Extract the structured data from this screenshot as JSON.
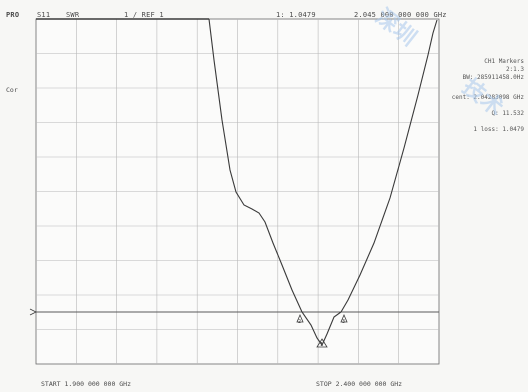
{
  "header": {
    "mode": "PRO",
    "channel": "S11",
    "format": "SWR",
    "scale": "1   / REF  1",
    "marker_readout": "1: 1.0479",
    "marker_freq": "2.045 000 000 000 GHz"
  },
  "left_labels": {
    "top": "",
    "marker": "Cor",
    "mid": ""
  },
  "marker_panel": {
    "title": "CH1 Markers",
    "line1": "2:1.3",
    "line2": "BW: 285911458.0Hz",
    "line3": "cent: 2.04283098 GHz",
    "line4": "Q: 11.532",
    "line5": "1 loss: 1.0479"
  },
  "footer": {
    "start": "START  1.900 000 000 GHz",
    "stop": "STOP  2.400 000 000 GHz"
  },
  "watermark": {
    "text1": "深圳",
    "text2": "技术"
  },
  "colors": {
    "trace": "#3a3a3a",
    "grid": "#b8b8b8",
    "frame": "#6a6a6a",
    "watermark": "#a9c8ec"
  },
  "chart_data": {
    "type": "line",
    "xlabel": "",
    "ylabel": "",
    "x_start_ghz": 1.9,
    "x_stop_ghz": 2.4,
    "y_divisions": 10,
    "reference_level": 1,
    "markers": [
      {
        "id": "1",
        "label": "1"
      },
      {
        "id": "2",
        "label": "2"
      },
      {
        "id": "3",
        "label": "3"
      }
    ]
  }
}
